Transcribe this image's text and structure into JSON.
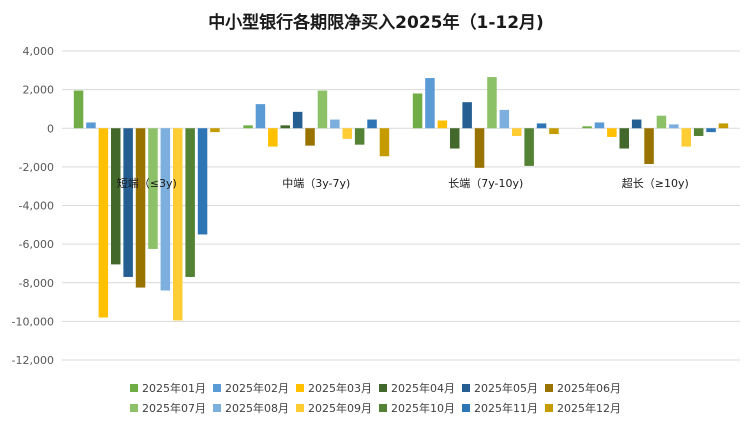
{
  "chart_data": {
    "type": "bar",
    "title": "中小型银行各期限净买入2025年（1-12月)",
    "xlabel": "",
    "ylabel": "",
    "ylim": [
      -12000,
      4000
    ],
    "yticks": [
      4000,
      2000,
      0,
      -2000,
      -4000,
      -6000,
      -8000,
      -10000,
      -12000
    ],
    "ytick_labels": [
      "4,000",
      "2,000",
      "0",
      "-2,000",
      "-4,000",
      "-6,000",
      "-8,000",
      "-10,000",
      "-12,000"
    ],
    "grid": true,
    "legend_position": "bottom",
    "categories": [
      "短端（≤3y)",
      "中端（3y-7y)",
      "长端（7y-10y)",
      "超长（≥10y)"
    ],
    "series": [
      {
        "name": "2025年01月",
        "color": "#70ad47",
        "values": [
          1950,
          150,
          1800,
          100
        ]
      },
      {
        "name": "2025年02月",
        "color": "#5b9bd5",
        "values": [
          300,
          1250,
          2600,
          300
        ]
      },
      {
        "name": "2025年03月",
        "color": "#ffc000",
        "values": [
          -9800,
          -950,
          400,
          -450
        ]
      },
      {
        "name": "2025年04月",
        "color": "#43682b",
        "values": [
          -7050,
          150,
          -1050,
          -1050
        ]
      },
      {
        "name": "2025年05月",
        "color": "#255e91",
        "values": [
          -7700,
          850,
          1350,
          450
        ]
      },
      {
        "name": "2025年06月",
        "color": "#997300",
        "values": [
          -8250,
          -900,
          -2050,
          -1850
        ]
      },
      {
        "name": "2025年07月",
        "color": "#8cc168",
        "values": [
          -6250,
          1950,
          2650,
          650
        ]
      },
      {
        "name": "2025年08月",
        "color": "#7cafdd",
        "values": [
          -8400,
          450,
          950,
          200
        ]
      },
      {
        "name": "2025年09月",
        "color": "#ffcd33",
        "values": [
          -9950,
          -550,
          -400,
          -950
        ]
      },
      {
        "name": "2025年10月",
        "color": "#548235",
        "values": [
          -7700,
          -850,
          -1950,
          -400
        ]
      },
      {
        "name": "2025年11月",
        "color": "#2e75b6",
        "values": [
          -5500,
          450,
          250,
          -200
        ]
      },
      {
        "name": "2025年12月",
        "color": "#c59c00",
        "values": [
          -200,
          -1450,
          -300,
          250
        ]
      }
    ]
  }
}
